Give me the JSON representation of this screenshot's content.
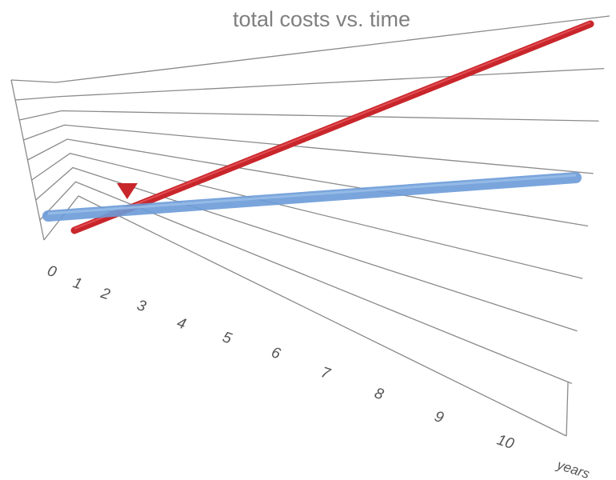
{
  "chart_data": {
    "type": "line",
    "title": "total costs vs. time",
    "xlabel": "years",
    "ylabel": "",
    "x": [
      0,
      10
    ],
    "x_ticks": [
      "0",
      "1",
      "2",
      "3",
      "4",
      "5",
      "6",
      "7",
      "8",
      "9",
      "10"
    ],
    "y_range": [
      0,
      8
    ],
    "grid": true,
    "series": [
      {
        "color": "#c8262b",
        "x": [
          0,
          10
        ],
        "y": [
          0,
          10.2
        ]
      },
      {
        "color": "#6b9bd8",
        "x": [
          0,
          10
        ],
        "y": [
          0.7,
          2.2
        ]
      }
    ],
    "annotations": [
      {
        "type": "marker",
        "shape": "down-triangle",
        "color": "#c8262b",
        "x": 1.5,
        "y": 1.05
      }
    ]
  }
}
